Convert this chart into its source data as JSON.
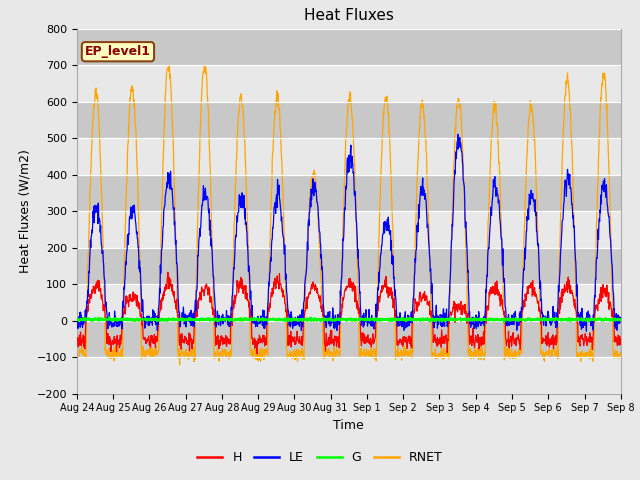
{
  "title": "Heat Fluxes",
  "xlabel": "Time",
  "ylabel": "Heat Fluxes (W/m2)",
  "ylim": [
    -200,
    800
  ],
  "yticks": [
    -200,
    -100,
    0,
    100,
    200,
    300,
    400,
    500,
    600,
    700,
    800
  ],
  "legend_label": "EP_level1",
  "series_labels": [
    "H",
    "LE",
    "G",
    "RNET"
  ],
  "series_colors": [
    "red",
    "blue",
    "lime",
    "orange"
  ],
  "xtick_labels": [
    "Aug 24",
    "Aug 25",
    "Aug 26",
    "Aug 27",
    "Aug 28",
    "Aug 29",
    "Aug 30",
    "Aug 31",
    "Sep 1",
    "Sep 2",
    "Sep 3",
    "Sep 4",
    "Sep 5",
    "Sep 6",
    "Sep 7",
    "Sep 8"
  ],
  "background_color": "#e8e8e8",
  "plot_bg_color": "#dcdcdc",
  "band_color_light": "#e8e8e8",
  "band_color_dark": "#c8c8c8",
  "legend_box_facecolor": "#ffffc0",
  "legend_box_edge": "#8B4513",
  "title_fontsize": 11,
  "n_days": 15,
  "points_per_day": 96
}
